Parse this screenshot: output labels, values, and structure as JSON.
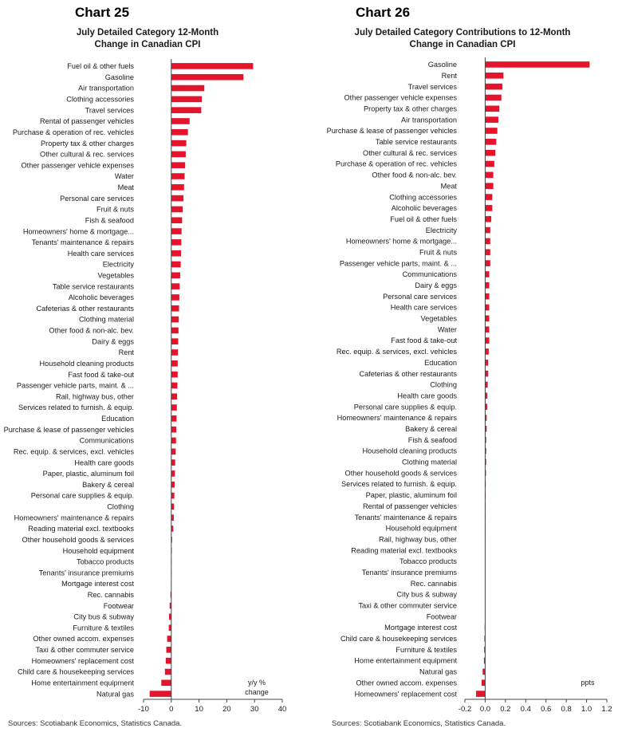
{
  "source_note": "Sources: Scotiabank Economics, Statistics Canada.",
  "colors": {
    "bar": "#e3142b",
    "axis": "#444444"
  },
  "chart_data": [
    {
      "type": "bar",
      "orientation": "horizontal",
      "chart_number": "Chart 25",
      "title_line1": "July Detailed Category 12-Month",
      "title_line2": "Change in Canadian CPI",
      "unit_line1": "y/y %",
      "unit_line2": "change",
      "xlim": [
        -10,
        40
      ],
      "ticks": [
        "-10",
        "0",
        "10",
        "20",
        "30",
        "40"
      ],
      "tick_values": [
        -10,
        0,
        10,
        20,
        30,
        40
      ],
      "grid": false,
      "categories": [
        "Fuel oil & other fuels",
        "Gasoline",
        "Air transportation",
        "Clothing accessories",
        "Travel services",
        "Rental of passenger vehicles",
        "Purchase & operation of rec. vehicles",
        "Property tax & other charges",
        "Other cultural & rec. services",
        "Other passenger vehicle expenses",
        "Water",
        "Meat",
        "Personal care services",
        "Fruit & nuts",
        "Fish & seafood",
        "Homeowners' home & mortgage...",
        "Tenants' maintenance & repairs",
        "Health care services",
        "Electricity",
        "Vegetables",
        "Table service restaurants",
        "Alcoholic beverages",
        "Cafeterias & other restaurants",
        "Clothing material",
        "Other food & non-alc. bev.",
        "Dairy & eggs",
        "Rent",
        "Household cleaning products",
        "Fast food & take-out",
        "Passenger vehicle parts, maint. & ...",
        "Rail, highway bus, other",
        "Services related to furnish. & equip.",
        "Education",
        "Purchase & lease of passenger vehicles",
        "Communications",
        "Rec. equip. & services, excl. vehicles",
        "Health care goods",
        "Paper, plastic, aluminum foil",
        "Bakery & cereal",
        "Personal care supplies & equip.",
        "Clothing",
        "Homeowners' maintenance & repairs",
        "Reading material excl. textbooks",
        "Other household goods & services",
        "Household equipment",
        "Tobacco products",
        "Tenants' insurance premiums",
        "Mortgage interest cost",
        "Rec. cannabis",
        "Footwear",
        "City bus & subway",
        "Furniture & textiles",
        "Other owned accom. expenses",
        "Taxi & other commuter service",
        "Homeowners' replacement cost",
        "Child care & housekeeping services",
        "Home entertainment equipment",
        "Natural gas"
      ],
      "values": [
        29.5,
        26.0,
        11.9,
        11.0,
        10.8,
        6.6,
        6.0,
        5.4,
        5.2,
        5.0,
        4.8,
        4.6,
        4.4,
        4.1,
        3.9,
        3.7,
        3.6,
        3.5,
        3.4,
        3.2,
        3.0,
        2.9,
        2.8,
        2.7,
        2.6,
        2.5,
        2.4,
        2.3,
        2.3,
        2.2,
        2.1,
        2.0,
        1.9,
        1.8,
        1.7,
        1.6,
        1.4,
        1.3,
        1.2,
        1.1,
        1.0,
        0.9,
        0.7,
        0.3,
        0.2,
        0.1,
        0.1,
        -0.1,
        -0.3,
        -0.6,
        -0.8,
        -0.9,
        -1.5,
        -1.8,
        -2.0,
        -2.3,
        -3.6,
        -7.8
      ]
    },
    {
      "type": "bar",
      "orientation": "horizontal",
      "chart_number": "Chart 26",
      "title_line1": "July Detailed Category Contributions to 12-Month",
      "title_line2": "Change in Canadian CPI",
      "unit_line1": "ppts",
      "unit_line2": "",
      "xlim": [
        -0.2,
        1.2
      ],
      "ticks": [
        "-0.2",
        "0.0",
        "0.2",
        "0.4",
        "0.6",
        "0.8",
        "1.0",
        "1.2"
      ],
      "tick_values": [
        -0.2,
        0.0,
        0.2,
        0.4,
        0.6,
        0.8,
        1.0,
        1.2
      ],
      "grid": false,
      "categories": [
        "Gasoline",
        "Rent",
        "Travel services",
        "Other passenger vehicle expenses",
        "Property tax & other charges",
        "Air transportation",
        "Purchase & lease of passenger vehicles",
        "Table service restaurants",
        "Other cultural & rec. services",
        "Purchase & operation of rec. vehicles",
        "Other food & non-alc. bev.",
        "Meat",
        "Clothing accessories",
        "Alcoholic beverages",
        "Fuel oil & other fuels",
        "Electricity",
        "Homeowners' home & mortgage...",
        "Fruit & nuts",
        "Passenger vehicle parts, maint. & ...",
        "Communications",
        "Dairy & eggs",
        "Personal care services",
        "Health care services",
        "Vegetables",
        "Water",
        "Fast food & take-out",
        "Rec. equip. & services, excl. vehicles",
        "Education",
        "Cafeterias & other restaurants",
        "Clothing",
        "Health care goods",
        "Personal care supplies & equip.",
        "Homeowners' maintenance & repairs",
        "Bakery & cereal",
        "Fish & seafood",
        "Household cleaning products",
        "Clothing material",
        "Other household goods & services",
        "Services related to furnish. & equip.",
        "Paper, plastic, aluminum foil",
        "Rental of passenger vehicles",
        "Tenants' maintenance & repairs",
        "Household equipment",
        "Rail, highway bus, other",
        "Reading material excl. textbooks",
        "Tobacco products",
        "Tenants' insurance premiums",
        "Rec. cannabis",
        "City bus & subway",
        "Taxi & other commuter service",
        "Footwear",
        "Mortgage interest cost",
        "Child care & housekeeping services",
        "Furniture & textiles",
        "Home entertainment equipment",
        "Natural gas",
        "Other owned accom. expenses",
        "Homeowners' replacement cost"
      ],
      "values": [
        1.03,
        0.18,
        0.17,
        0.16,
        0.14,
        0.13,
        0.12,
        0.11,
        0.1,
        0.09,
        0.08,
        0.08,
        0.07,
        0.07,
        0.06,
        0.05,
        0.05,
        0.05,
        0.05,
        0.04,
        0.04,
        0.04,
        0.04,
        0.04,
        0.04,
        0.04,
        0.035,
        0.03,
        0.03,
        0.025,
        0.02,
        0.02,
        0.015,
        0.015,
        0.01,
        0.01,
        0.01,
        0.008,
        0.006,
        0.005,
        0.004,
        0.003,
        0.002,
        0.002,
        0.001,
        0.001,
        0.0005,
        0.0,
        0.0,
        0.0,
        -0.002,
        -0.005,
        -0.008,
        -0.01,
        -0.012,
        -0.025,
        -0.035,
        -0.09
      ]
    }
  ]
}
